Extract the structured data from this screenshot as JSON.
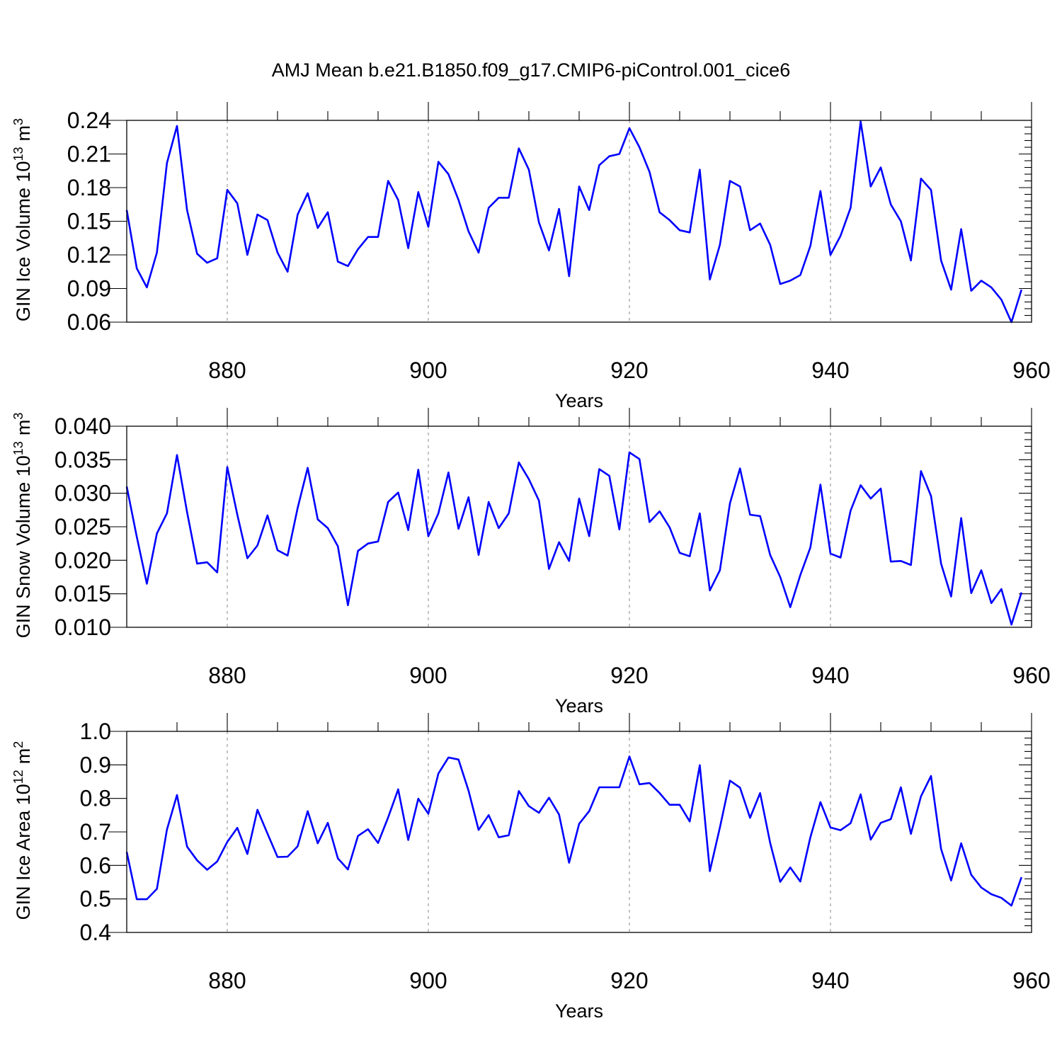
{
  "title": "AMJ Mean b.e21.B1850.f09_g17.CMIP6-piControl.001_cice6",
  "colors": {
    "line": "#0000ff",
    "frame": "#000000",
    "grid": "#888888"
  },
  "chart_data": [
    {
      "type": "line",
      "name": "ice-volume",
      "xlabel": "Years",
      "ylabel": "GIN Ice Volume 10",
      "ylabel_sup": "13",
      "ylabel_unit": "m",
      "ylabel_unit_sup": "3",
      "xlim": [
        870,
        960
      ],
      "ylim": [
        0.06,
        0.24
      ],
      "xticks": [
        "880",
        "900",
        "920",
        "940",
        "960"
      ],
      "yticks": [
        "0.06",
        "0.09",
        "0.12",
        "0.15",
        "0.18",
        "0.21",
        "0.24"
      ],
      "x_start": 870,
      "values": [
        0.16,
        0.108,
        0.091,
        0.122,
        0.202,
        0.235,
        0.16,
        0.121,
        0.113,
        0.117,
        0.178,
        0.166,
        0.12,
        0.156,
        0.151,
        0.122,
        0.105,
        0.156,
        0.175,
        0.144,
        0.158,
        0.114,
        0.11,
        0.125,
        0.136,
        0.136,
        0.186,
        0.169,
        0.126,
        0.176,
        0.145,
        0.203,
        0.192,
        0.169,
        0.141,
        0.122,
        0.162,
        0.171,
        0.171,
        0.215,
        0.196,
        0.149,
        0.124,
        0.161,
        0.101,
        0.181,
        0.16,
        0.2,
        0.208,
        0.21,
        0.233,
        0.216,
        0.194,
        0.158,
        0.151,
        0.142,
        0.14,
        0.196,
        0.098,
        0.129,
        0.186,
        0.181,
        0.142,
        0.148,
        0.129,
        0.094,
        0.097,
        0.102,
        0.128,
        0.177,
        0.12,
        0.137,
        0.162,
        0.239,
        0.181,
        0.198,
        0.165,
        0.15,
        0.115,
        0.188,
        0.178,
        0.115,
        0.089,
        0.143,
        0.088,
        0.097,
        0.091,
        0.08,
        0.06,
        0.089
      ]
    },
    {
      "type": "line",
      "name": "snow-volume",
      "xlabel": "Years",
      "ylabel": "GIN Snow Volume 10",
      "ylabel_sup": "13",
      "ylabel_unit": "m",
      "ylabel_unit_sup": "3",
      "xlim": [
        870,
        960
      ],
      "ylim": [
        0.01,
        0.04
      ],
      "xticks": [
        "880",
        "900",
        "920",
        "940",
        "960"
      ],
      "yticks": [
        "0.010",
        "0.015",
        "0.020",
        "0.025",
        "0.030",
        "0.035",
        "0.040"
      ],
      "x_start": 870,
      "values": [
        0.031,
        0.0235,
        0.0165,
        0.024,
        0.027,
        0.0357,
        0.0272,
        0.0195,
        0.0197,
        0.0182,
        0.0339,
        0.0268,
        0.0203,
        0.0222,
        0.0267,
        0.0215,
        0.0207,
        0.0278,
        0.0338,
        0.0261,
        0.0248,
        0.0221,
        0.0133,
        0.0214,
        0.0225,
        0.0228,
        0.0287,
        0.0301,
        0.0245,
        0.0335,
        0.0236,
        0.027,
        0.0331,
        0.0247,
        0.0294,
        0.0208,
        0.0287,
        0.0248,
        0.027,
        0.0346,
        0.0321,
        0.0289,
        0.0187,
        0.0227,
        0.0199,
        0.0292,
        0.0236,
        0.0336,
        0.0326,
        0.0246,
        0.0361,
        0.0351,
        0.0257,
        0.0273,
        0.0249,
        0.0211,
        0.0206,
        0.027,
        0.0155,
        0.0185,
        0.0285,
        0.0337,
        0.0268,
        0.0266,
        0.0208,
        0.0175,
        0.013,
        0.0178,
        0.0219,
        0.0313,
        0.021,
        0.0204,
        0.0274,
        0.0312,
        0.0292,
        0.0307,
        0.0198,
        0.0199,
        0.0193,
        0.0333,
        0.0296,
        0.0195,
        0.0146,
        0.0263,
        0.0151,
        0.0185,
        0.0136,
        0.0157,
        0.0104,
        0.0152
      ]
    },
    {
      "type": "line",
      "name": "ice-area",
      "xlabel": "Years",
      "ylabel": "GIN Ice Area 10",
      "ylabel_sup": "12",
      "ylabel_unit": "m",
      "ylabel_unit_sup": "2",
      "xlim": [
        870,
        960
      ],
      "ylim": [
        0.4,
        1.0
      ],
      "xticks": [
        "880",
        "900",
        "920",
        "940",
        "960"
      ],
      "yticks": [
        "0.4",
        "0.5",
        "0.6",
        "0.7",
        "0.8",
        "0.9",
        "1.0"
      ],
      "x_start": 870,
      "values": [
        0.64,
        0.499,
        0.499,
        0.53,
        0.707,
        0.81,
        0.656,
        0.615,
        0.587,
        0.612,
        0.67,
        0.712,
        0.634,
        0.766,
        0.695,
        0.625,
        0.626,
        0.657,
        0.762,
        0.666,
        0.727,
        0.621,
        0.588,
        0.688,
        0.708,
        0.667,
        0.743,
        0.827,
        0.676,
        0.799,
        0.754,
        0.874,
        0.922,
        0.916,
        0.823,
        0.706,
        0.75,
        0.684,
        0.69,
        0.822,
        0.777,
        0.757,
        0.802,
        0.752,
        0.608,
        0.724,
        0.762,
        0.833,
        0.833,
        0.833,
        0.925,
        0.842,
        0.846,
        0.816,
        0.781,
        0.781,
        0.731,
        0.899,
        0.583,
        0.713,
        0.853,
        0.832,
        0.742,
        0.816,
        0.667,
        0.551,
        0.594,
        0.552,
        0.684,
        0.789,
        0.713,
        0.705,
        0.726,
        0.812,
        0.677,
        0.727,
        0.738,
        0.833,
        0.694,
        0.806,
        0.867,
        0.649,
        0.555,
        0.666,
        0.572,
        0.534,
        0.514,
        0.503,
        0.48,
        0.565
      ]
    }
  ]
}
